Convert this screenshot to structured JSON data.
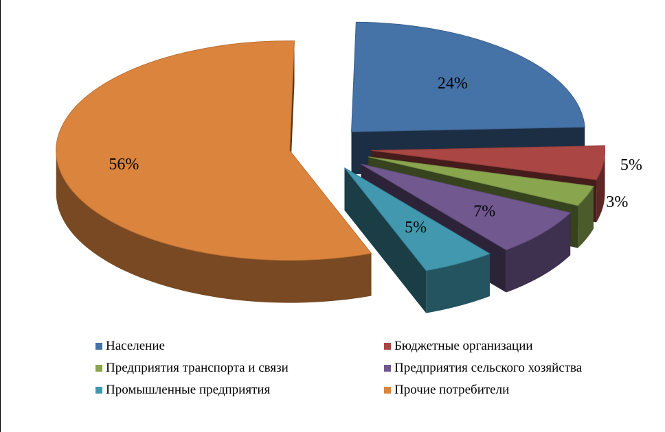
{
  "chart_data": {
    "type": "pie",
    "title": "",
    "slices": [
      {
        "label": "Население",
        "value": 24,
        "data_label": "24%",
        "color": "#4572A7"
      },
      {
        "label": "Бюджетные организации",
        "value": 5,
        "data_label": "5%",
        "color": "#AA4643"
      },
      {
        "label": "Предприятия транспорта и связи",
        "value": 3,
        "data_label": "3%",
        "color": "#89A54E"
      },
      {
        "label": "Предприятия сельского хозяйства",
        "value": 7,
        "data_label": "7%",
        "color": "#71588F"
      },
      {
        "label": "Промышленные предприятия",
        "value": 5,
        "data_label": "5%",
        "color": "#4198AF"
      },
      {
        "label": "Прочие потребители",
        "value": 56,
        "data_label": "56%",
        "color": "#DB843D"
      }
    ],
    "exploded": true,
    "three_d": true,
    "legend_position": "bottom"
  }
}
